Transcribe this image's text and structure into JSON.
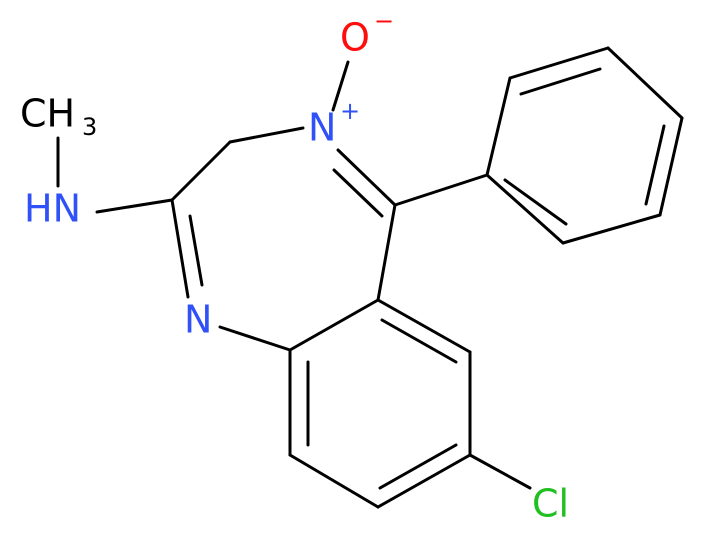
{
  "labels": {
    "methyl": {
      "text": "CH",
      "subscript": "3"
    },
    "amine": "HN",
    "ring_n": "N",
    "n_plus": {
      "text": "N",
      "charge": "+"
    },
    "oxygen": {
      "text": "O",
      "charge": "−"
    },
    "chlorine": "Cl"
  }
}
